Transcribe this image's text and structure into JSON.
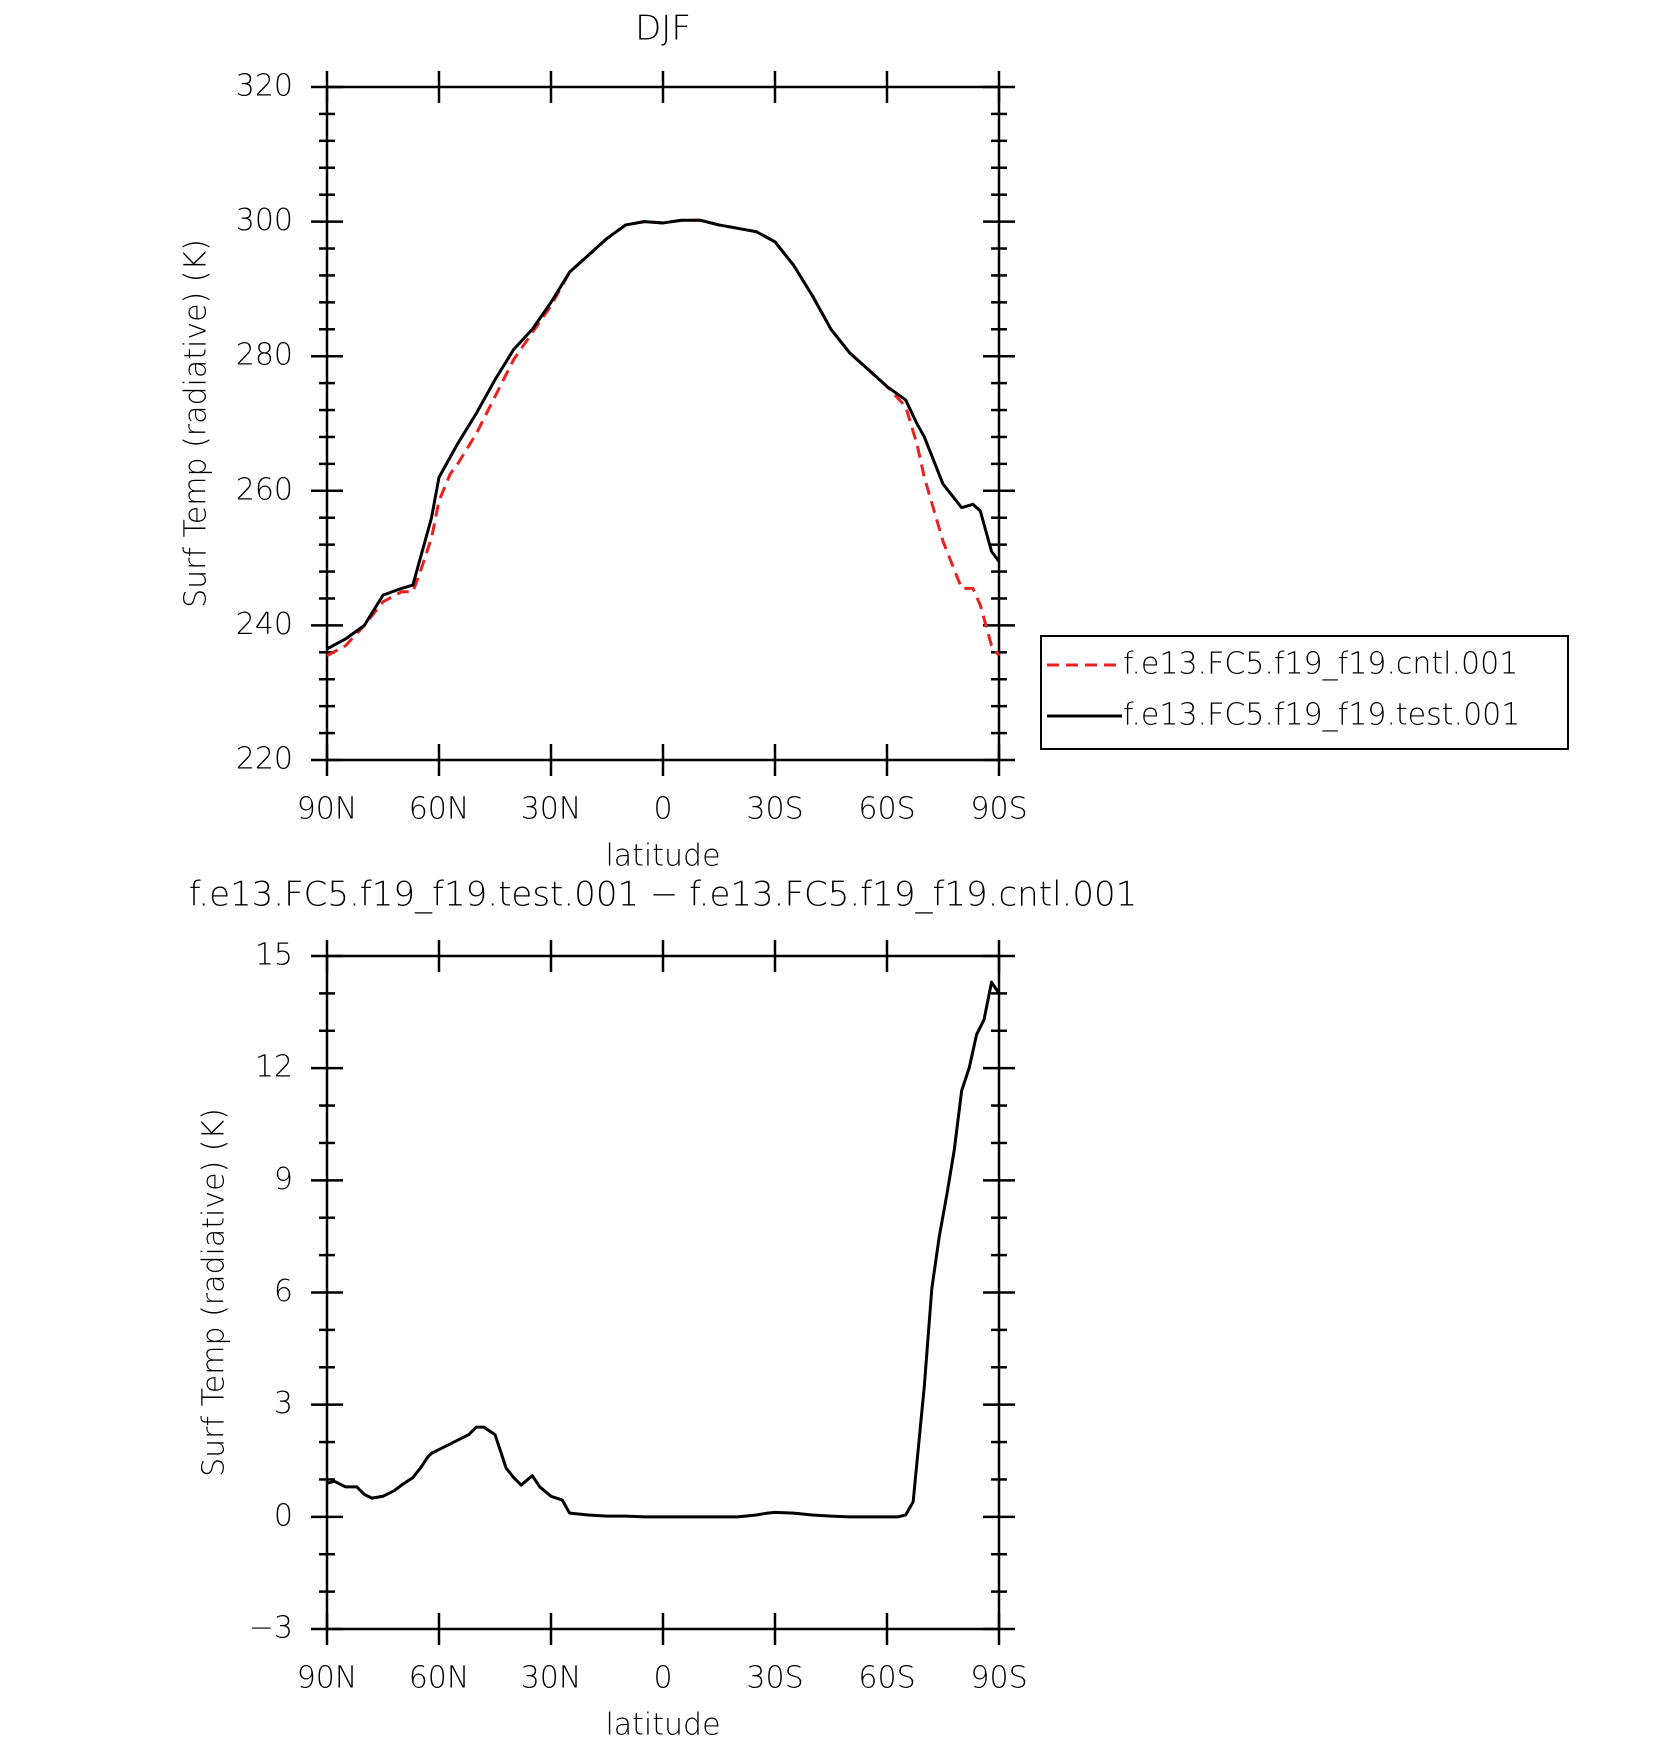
{
  "chart_data": [
    {
      "type": "line",
      "title": "DJF",
      "x_label": "latitude",
      "y_label": "Surf Temp (radiative) (K)",
      "x": [
        90,
        85,
        80,
        75,
        70,
        67,
        65,
        62,
        60,
        57,
        55,
        50,
        45,
        40,
        35,
        30,
        25,
        20,
        15,
        10,
        5,
        0,
        -5,
        -10,
        -15,
        -20,
        -25,
        -30,
        -35,
        -40,
        -45,
        -50,
        -55,
        -60,
        -65,
        -68,
        -70,
        -75,
        -80,
        -83,
        -85,
        -88,
        -90
      ],
      "series": [
        {
          "name": "f.e13.FC5.f19_f19.cntl.001",
          "color": "#e8231f",
          "linestyle": "dashed",
          "values": [
            235.5,
            237,
            240,
            243.5,
            245,
            245,
            248,
            253,
            258.5,
            262.5,
            264,
            268.5,
            274,
            279.5,
            283.5,
            287.5,
            292.5,
            295,
            297.5,
            299.5,
            300,
            299.8,
            300.2,
            300.2,
            299.5,
            299,
            298.5,
            297,
            293.5,
            289,
            284,
            280.5,
            278,
            275.5,
            272.5,
            267,
            262,
            252.5,
            245.5,
            245.5,
            243,
            237,
            235.5
          ]
        },
        {
          "name": "f.e13.FC5.f19_f19.test.001",
          "color": "#000000",
          "linestyle": "solid",
          "values": [
            236.5,
            238,
            240,
            244.5,
            245.5,
            246,
            250,
            256,
            262,
            265,
            267,
            271.5,
            276.5,
            281,
            284,
            288,
            292.5,
            295,
            297.5,
            299.5,
            300,
            299.8,
            300.2,
            300.2,
            299.5,
            299,
            298.5,
            297,
            293.5,
            289,
            284,
            280.5,
            278,
            275.5,
            273.5,
            270,
            268,
            261,
            257.5,
            258,
            257,
            251,
            249.5
          ]
        }
      ],
      "xlim": [
        90,
        -90
      ],
      "xticks": [
        {
          "value": 90,
          "label": "90N"
        },
        {
          "value": 60,
          "label": "60N"
        },
        {
          "value": 30,
          "label": "30N"
        },
        0,
        {
          "value": -30,
          "label": "30S"
        },
        {
          "value": -60,
          "label": "60S"
        },
        {
          "value": -90,
          "label": "90S"
        }
      ],
      "ylim": [
        220,
        320
      ],
      "yticks": [
        220,
        240,
        260,
        280,
        300,
        320
      ],
      "yminorticks": [
        224,
        228,
        232,
        236,
        244,
        248,
        252,
        256,
        264,
        268,
        272,
        276,
        284,
        288,
        292,
        296,
        304,
        308,
        312,
        316
      ],
      "legend": "right"
    },
    {
      "type": "line",
      "title": "f.e13.FC5.f19_f19.test.001 − f.e13.FC5.f19_f19.cntl.001",
      "x_label": "latitude",
      "y_label": "Surf Temp (radiative) (K)",
      "x": [
        90,
        88,
        85,
        82,
        80,
        78,
        75,
        72,
        70,
        67,
        65,
        63,
        62,
        60,
        57,
        55,
        52,
        50,
        48,
        45,
        42,
        40,
        38,
        35,
        33,
        30,
        27,
        25,
        20,
        15,
        10,
        5,
        0,
        -5,
        -10,
        -15,
        -20,
        -25,
        -28,
        -30,
        -35,
        -40,
        -45,
        -50,
        -55,
        -60,
        -63,
        -65,
        -67,
        -70,
        -72,
        -74,
        -76,
        -78,
        -80,
        -82,
        -84,
        -86,
        -88,
        -90
      ],
      "series": [
        {
          "color": "#000000",
          "linestyle": "solid",
          "values": [
            0.9,
            0.95,
            0.8,
            0.8,
            0.6,
            0.5,
            0.55,
            0.7,
            0.85,
            1.05,
            1.3,
            1.6,
            1.7,
            1.8,
            1.95,
            2.05,
            2.2,
            2.4,
            2.4,
            2.2,
            1.3,
            1.05,
            0.85,
            1.1,
            0.8,
            0.55,
            0.45,
            0.1,
            0.05,
            0.02,
            0.02,
            0.0,
            0.0,
            0.0,
            0.0,
            0.0,
            0.0,
            0.05,
            0.1,
            0.12,
            0.1,
            0.05,
            0.02,
            0.0,
            0.0,
            0.0,
            0.0,
            0.05,
            0.4,
            3.5,
            6.1,
            7.5,
            8.6,
            9.8,
            11.4,
            12.0,
            12.9,
            13.3,
            14.3,
            14.0
          ]
        }
      ],
      "xlim": [
        90,
        -90
      ],
      "xticks": [
        {
          "value": 90,
          "label": "90N"
        },
        {
          "value": 60,
          "label": "60N"
        },
        {
          "value": 30,
          "label": "30N"
        },
        0,
        {
          "value": -30,
          "label": "30S"
        },
        {
          "value": -60,
          "label": "60S"
        },
        {
          "value": -90,
          "label": "90S"
        }
      ],
      "ylim": [
        -3,
        15
      ],
      "yticks": [
        {
          "value": -3,
          "label": "−3"
        },
        0,
        3,
        6,
        9,
        12,
        15
      ],
      "yminorticks": [
        -2,
        -1,
        1,
        2,
        4,
        5,
        7,
        8,
        10,
        11,
        13,
        14
      ]
    }
  ]
}
